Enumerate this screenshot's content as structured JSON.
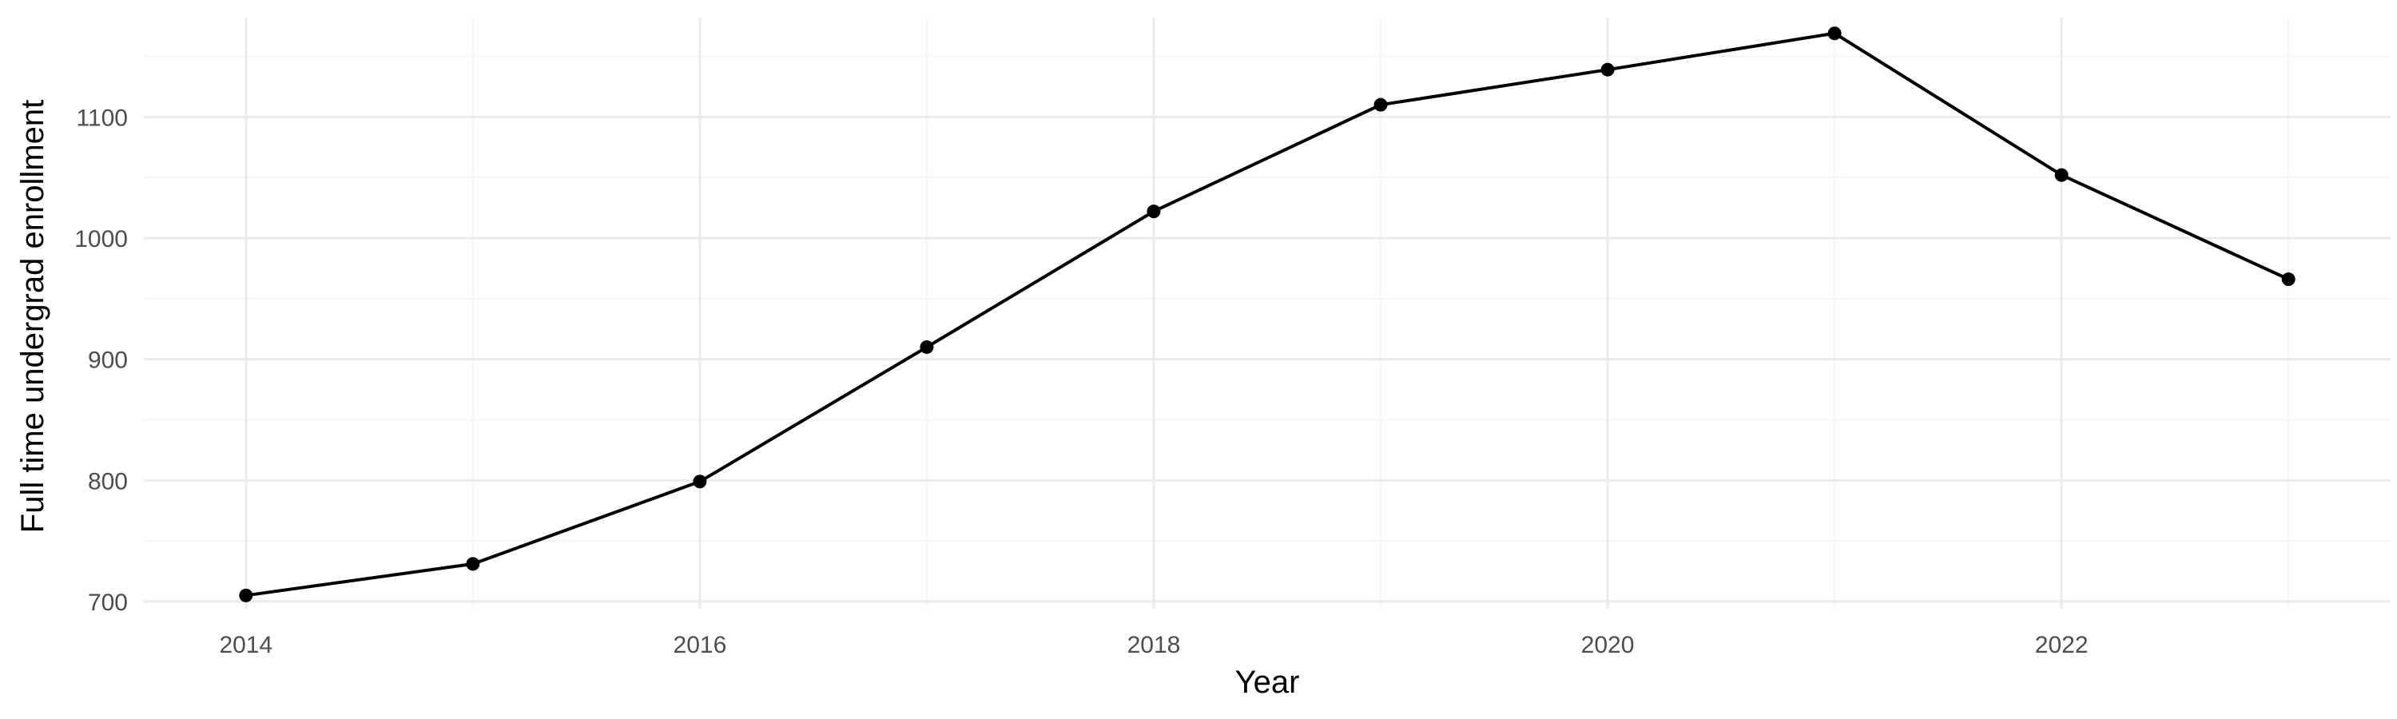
{
  "chart_data": {
    "type": "line",
    "title": "",
    "xlabel": "Year",
    "ylabel": "Full time undergrad enrollment",
    "x": [
      2014,
      2015,
      2016,
      2017,
      2018,
      2019,
      2020,
      2021,
      2022,
      2023
    ],
    "series": [
      {
        "values": [
          705,
          731,
          799,
          910,
          1022,
          1110,
          1139,
          1169,
          1052,
          966
        ]
      }
    ],
    "x_ticks": [
      "2014",
      "2016",
      "2018",
      "2020",
      "2022"
    ],
    "y_ticks": [
      "700",
      "800",
      "900",
      "1000",
      "1100"
    ],
    "xlim": [
      2013.55,
      2023.45
    ],
    "ylim": [
      694,
      1182
    ],
    "grid": true,
    "legend": "none",
    "colors": {
      "line": "#000000",
      "grid_major": "#ebebeb",
      "grid_minor": "#f5f5f5",
      "tick_text": "#4d4d4d"
    }
  }
}
